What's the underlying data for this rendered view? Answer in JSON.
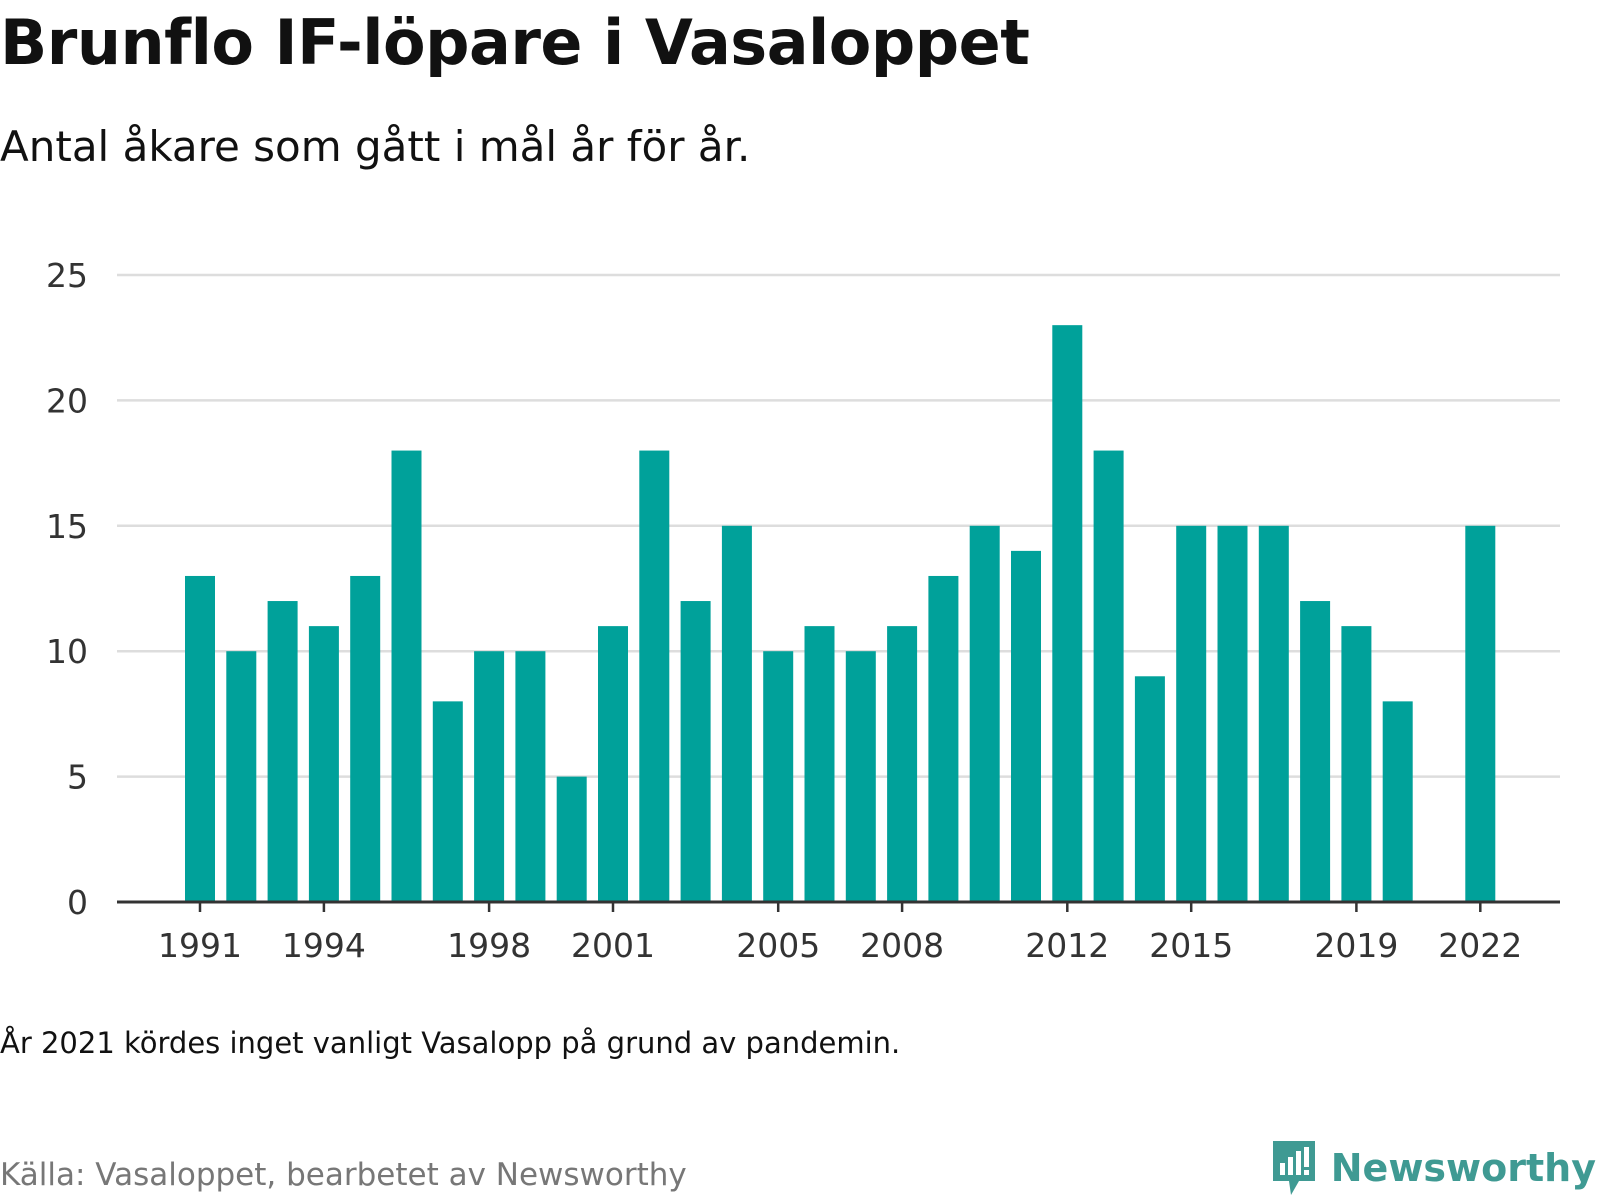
{
  "title": "Brunflo IF-löpare i Vasaloppet",
  "subtitle": "Antal åkare som gått i mål år för år.",
  "note": "År 2021 kördes inget vanligt Vasalopp på grund av pandemin.",
  "source": "Källa: Vasaloppet, bearbetet av Newsworthy",
  "brand": "Newsworthy",
  "colors": {
    "bar": "#00a19a",
    "grid": "#dddddd",
    "axis": "#333333",
    "brand": "#3f9a93"
  },
  "chart_data": {
    "type": "bar",
    "title": "Brunflo IF-löpare i Vasaloppet",
    "subtitle": "Antal åkare som gått i mål år för år.",
    "xlabel": "",
    "ylabel": "",
    "ylim": [
      0,
      25
    ],
    "yticks": [
      0,
      5,
      10,
      15,
      20,
      25
    ],
    "xticks": [
      "1991",
      "1994",
      "1998",
      "2001",
      "2005",
      "2008",
      "2012",
      "2015",
      "2019",
      "2022"
    ],
    "grid": true,
    "categories": [
      "1991",
      "1992",
      "1993",
      "1994",
      "1995",
      "1996",
      "1997",
      "1998",
      "1999",
      "2000",
      "2001",
      "2002",
      "2003",
      "2004",
      "2005",
      "2006",
      "2007",
      "2008",
      "2009",
      "2010",
      "2011",
      "2012",
      "2013",
      "2014",
      "2015",
      "2016",
      "2017",
      "2018",
      "2019",
      "2020",
      "2021",
      "2022"
    ],
    "values": [
      13,
      10,
      12,
      11,
      13,
      18,
      8,
      10,
      10,
      5,
      11,
      18,
      12,
      15,
      10,
      11,
      10,
      11,
      13,
      15,
      14,
      23,
      18,
      9,
      15,
      15,
      15,
      12,
      11,
      8,
      null,
      15
    ]
  }
}
